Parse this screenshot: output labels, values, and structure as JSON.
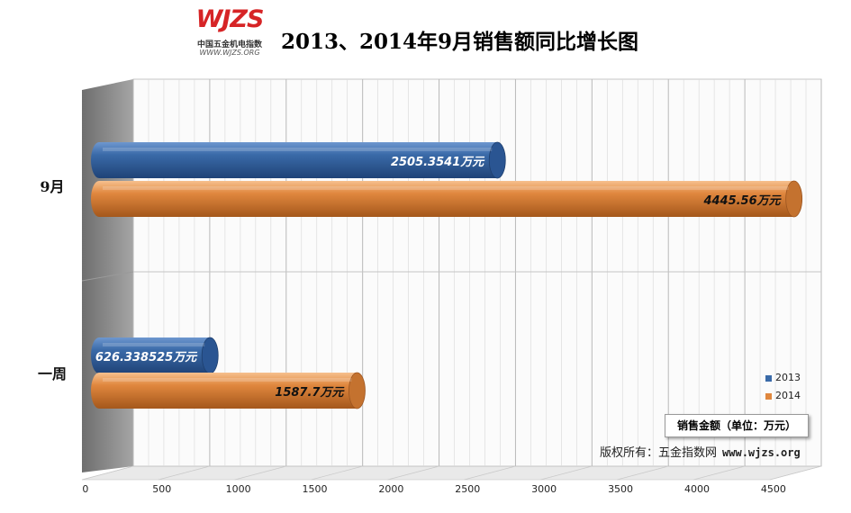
{
  "logo": {
    "mark": "WJZS",
    "name": "中国五金机电指数",
    "url": "WWW.WJZS.ORG"
  },
  "title": "2013、2014年9月销售额同比增长图",
  "watermark": {
    "mark": "WJZS",
    "name": "中国五金机电指数",
    "url": "WWW.WJZS.ORG"
  },
  "unit_label": "销售金额（单位：万元）",
  "copyright": {
    "text": "版权所有：五金指数网",
    "url": "www.wjzs.org"
  },
  "colors": {
    "series_2013": "#3a6aa8",
    "series_2014": "#e0873e",
    "wall": "#8a8a8a",
    "grid": "#c8c8c8",
    "watermark": "#f0d0d0"
  },
  "chart_data": {
    "type": "bar",
    "orientation": "horizontal",
    "style": "3d-cylinder",
    "categories": [
      "9月",
      "一周"
    ],
    "series": [
      {
        "name": "2013",
        "values": [
          2505.3541,
          626.338525
        ],
        "labels": [
          "2505.3541万元",
          "626.338525万元"
        ]
      },
      {
        "name": "2014",
        "values": [
          4445.56,
          1587.7
        ],
        "labels": [
          "4445.56万元",
          "1587.7万元"
        ]
      }
    ],
    "xlim": [
      0,
      4500
    ],
    "xticks": [
      "0",
      "500",
      "1000",
      "1500",
      "2000",
      "2500",
      "3000",
      "3500",
      "4000",
      "4500"
    ],
    "grid": true,
    "legend": "bottom-right"
  }
}
